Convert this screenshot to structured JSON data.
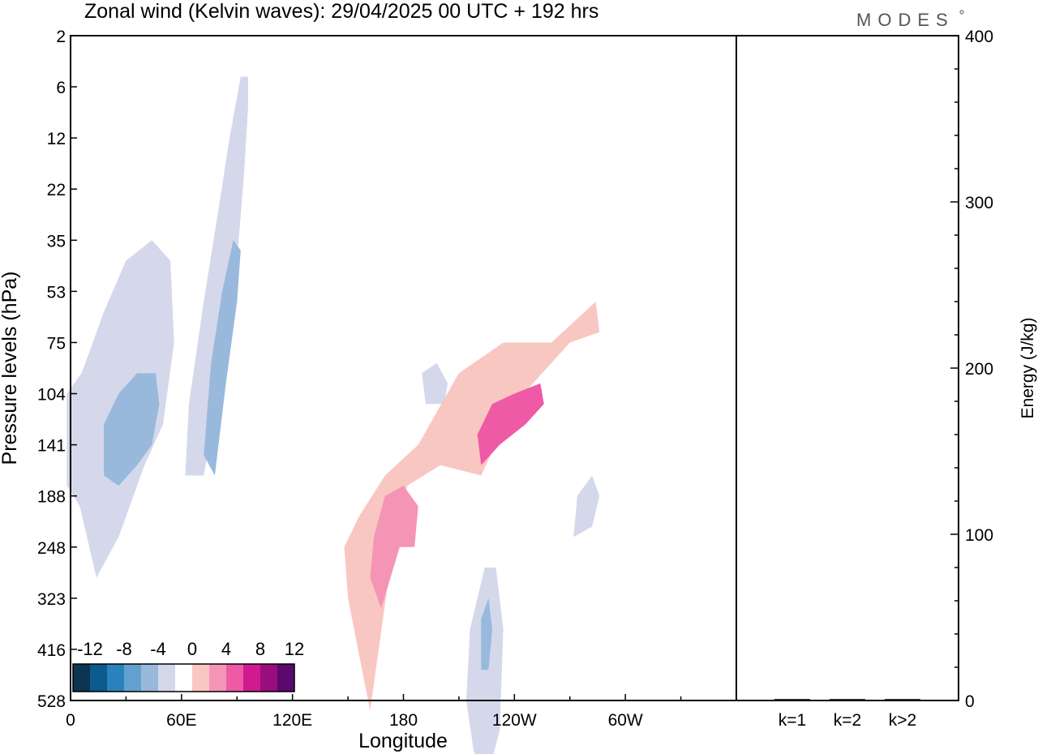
{
  "chart_data": {
    "type": "heatmap",
    "title": "Zonal wind (Kelvin waves):  29/04/2025  00 UTC  + 192 hrs",
    "brand": "MODES",
    "xlabel": "Longitude",
    "ylabel": "Pressure levels (hPa)",
    "x_ticks": [
      "0",
      "60E",
      "120E",
      "180",
      "120W",
      "60W"
    ],
    "y_ticks": [
      "2",
      "6",
      "12",
      "22",
      "35",
      "53",
      "75",
      "104",
      "141",
      "188",
      "248",
      "323",
      "416",
      "528"
    ],
    "colorbar": {
      "labels": [
        "-12",
        "-8",
        "-4",
        "0",
        "4",
        "8",
        "12"
      ],
      "levels": [
        -14,
        -12,
        -10,
        -8,
        -6,
        -4,
        -2,
        2,
        4,
        6,
        8,
        10,
        12,
        14
      ],
      "colors": [
        "#0b3550",
        "#0d5a8c",
        "#2a82bd",
        "#62a1cf",
        "#99b9dc",
        "#d4d8ea",
        "#ffffff",
        "#f9c7c2",
        "#f595b6",
        "#ee5aa6",
        "#cf1b8f",
        "#9a0d7e",
        "#5a0a6e"
      ]
    },
    "contours": [
      {
        "level": -2,
        "color": "#d4d8ea",
        "pts": [
          [
            -2,
            88
          ],
          [
            5,
            92
          ],
          [
            14,
            106
          ],
          [
            26,
            98
          ],
          [
            40,
            84
          ],
          [
            50,
            76
          ],
          [
            56,
            60
          ],
          [
            54,
            44
          ],
          [
            44,
            40
          ],
          [
            30,
            44
          ],
          [
            18,
            54
          ],
          [
            6,
            66
          ],
          [
            -2,
            70
          ]
        ]
      },
      {
        "level": -4,
        "color": "#99b9dc",
        "pts": [
          [
            18,
            86
          ],
          [
            26,
            88
          ],
          [
            36,
            84
          ],
          [
            44,
            80
          ],
          [
            48,
            72
          ],
          [
            46,
            66
          ],
          [
            36,
            66
          ],
          [
            26,
            70
          ],
          [
            18,
            76
          ]
        ]
      },
      {
        "level": -2,
        "color": "#d4d8ea",
        "pts": [
          [
            72,
            86
          ],
          [
            82,
            66
          ],
          [
            90,
            44
          ],
          [
            94,
            26
          ],
          [
            96,
            14
          ],
          [
            96,
            8
          ],
          [
            92,
            8
          ],
          [
            86,
            20
          ],
          [
            80,
            34
          ],
          [
            72,
            52
          ],
          [
            64,
            72
          ],
          [
            62,
            86
          ]
        ]
      },
      {
        "level": -4,
        "color": "#99b9dc",
        "pts": [
          [
            78,
            86
          ],
          [
            84,
            68
          ],
          [
            90,
            52
          ],
          [
            92,
            42
          ],
          [
            88,
            40
          ],
          [
            82,
            50
          ],
          [
            76,
            64
          ],
          [
            72,
            82
          ]
        ]
      },
      {
        "level": -2,
        "color": "#d4d8ea",
        "pts": [
          [
            218,
            140
          ],
          [
            226,
            144
          ],
          [
            232,
            136
          ],
          [
            234,
            116
          ],
          [
            230,
            104
          ],
          [
            224,
            104
          ],
          [
            216,
            116
          ],
          [
            214,
            130
          ]
        ]
      },
      {
        "level": -4,
        "color": "#99b9dc",
        "pts": [
          [
            222,
            124
          ],
          [
            226,
            124
          ],
          [
            228,
            116
          ],
          [
            226,
            110
          ],
          [
            222,
            114
          ]
        ]
      },
      {
        "level": -2,
        "color": "#d4d8ea",
        "pts": [
          [
            192,
            72
          ],
          [
            202,
            72
          ],
          [
            204,
            68
          ],
          [
            198,
            64
          ],
          [
            190,
            66
          ]
        ]
      },
      {
        "level": -2,
        "color": "#d4d8ea",
        "pts": [
          [
            272,
            98
          ],
          [
            282,
            96
          ],
          [
            286,
            90
          ],
          [
            282,
            86
          ],
          [
            274,
            90
          ]
        ]
      },
      {
        "level": 2,
        "color": "#f9c7c2",
        "pts": [
          [
            150,
            110
          ],
          [
            162,
            132
          ],
          [
            172,
            106
          ],
          [
            182,
            88
          ],
          [
            200,
            84
          ],
          [
            222,
            86
          ],
          [
            240,
            72
          ],
          [
            270,
            60
          ],
          [
            286,
            58
          ],
          [
            284,
            52
          ],
          [
            260,
            60
          ],
          [
            234,
            60
          ],
          [
            210,
            66
          ],
          [
            188,
            80
          ],
          [
            170,
            86
          ],
          [
            156,
            94
          ],
          [
            148,
            100
          ]
        ]
      },
      {
        "level": 4,
        "color": "#f595b6",
        "pts": [
          [
            168,
            112
          ],
          [
            178,
            100
          ],
          [
            186,
            100
          ],
          [
            188,
            92
          ],
          [
            180,
            88
          ],
          [
            170,
            90
          ],
          [
            164,
            98
          ],
          [
            162,
            106
          ]
        ]
      },
      {
        "level": 6,
        "color": "#ee5aa6",
        "pts": [
          [
            222,
            84
          ],
          [
            232,
            80
          ],
          [
            246,
            76
          ],
          [
            256,
            72
          ],
          [
            254,
            68
          ],
          [
            240,
            70
          ],
          [
            228,
            72
          ],
          [
            220,
            78
          ]
        ]
      }
    ]
  }
}
